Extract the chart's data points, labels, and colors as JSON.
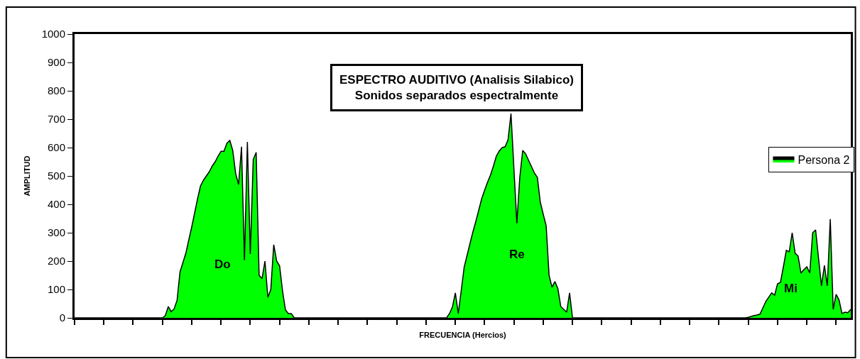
{
  "chart_data": {
    "type": "area",
    "title": "ESPECTRO AUDITIVO (Analisis Silabico)",
    "subtitle": "Sonidos separados espectralmente",
    "xlabel": "FRECUENCIA (Hercios)",
    "ylabel": "AMPLITUD",
    "categories": [
      null,
      null,
      null,
      null,
      null,
      null,
      null,
      null,
      null,
      null,
      null,
      null,
      null,
      null,
      null,
      null,
      null,
      null,
      null,
      null,
      null,
      null,
      null,
      null,
      null,
      null,
      null,
      null,
      null,
      null,
      null,
      null,
      null,
      null,
      null,
      null,
      null,
      null,
      null,
      null,
      null,
      null,
      null,
      null,
      null,
      null,
      null,
      null,
      null,
      null,
      null,
      null,
      null,
      null,
      null,
      null,
      null,
      null,
      null,
      null,
      null,
      null,
      null,
      null,
      null,
      null,
      null,
      null,
      null,
      null,
      null,
      null,
      null,
      null,
      null,
      null,
      null,
      null,
      null,
      null,
      null,
      null,
      null,
      null,
      null,
      null,
      null,
      null,
      null,
      null,
      null,
      null,
      null,
      null,
      null,
      null,
      null,
      null,
      null,
      null,
      null,
      null,
      null,
      null,
      null,
      null,
      null,
      null,
      null,
      null,
      null,
      null,
      null,
      null,
      null,
      null,
      null,
      null,
      null,
      null,
      null,
      null,
      null,
      null,
      null,
      null,
      null,
      null,
      null,
      null,
      null,
      null,
      null,
      null,
      null,
      null,
      null,
      null,
      null,
      null,
      null,
      null,
      null,
      null,
      null,
      null,
      null,
      null,
      null,
      null,
      null,
      null,
      null,
      null,
      null,
      null,
      null,
      null,
      null,
      null,
      null,
      null,
      null,
      null,
      null,
      null,
      null,
      null,
      null,
      null,
      null,
      null,
      null,
      null,
      null,
      null,
      null,
      null,
      null,
      null,
      null,
      null,
      null,
      null,
      null,
      null,
      null,
      null,
      null,
      null,
      null,
      null,
      null,
      null,
      null,
      null,
      null,
      null,
      null,
      null,
      null,
      null,
      null,
      null,
      null,
      null,
      null,
      null,
      null,
      null,
      null,
      null,
      null,
      null,
      null,
      null,
      null,
      null,
      null,
      null,
      null,
      null,
      null,
      null,
      null,
      null,
      null,
      null,
      null,
      null,
      null,
      null,
      null,
      null,
      null,
      null,
      null,
      null,
      null,
      null,
      null,
      null,
      null,
      null,
      null,
      null,
      null,
      null,
      null,
      null,
      null,
      null,
      null,
      null,
      null,
      null,
      null,
      null,
      null,
      null,
      null,
      null,
      null,
      null,
      null,
      null
    ],
    "series": [
      {
        "name": "Persona 2",
        "color": "#00ff00",
        "values": [
          0,
          0,
          0,
          0,
          0,
          0,
          0,
          0,
          0,
          0,
          0,
          0,
          0,
          0,
          0,
          0,
          0,
          0,
          0,
          0,
          0,
          0,
          0,
          0,
          0,
          0,
          0,
          0,
          0,
          0,
          0,
          8,
          40,
          22,
          32,
          62,
          162,
          195,
          228,
          275,
          320,
          370,
          420,
          465,
          485,
          500,
          515,
          535,
          550,
          570,
          587,
          587,
          615,
          625,
          590,
          508,
          470,
          603,
          203,
          620,
          225,
          558,
          583,
          150,
          138,
          200,
          72,
          100,
          258,
          200,
          183,
          95,
          28,
          15,
          15,
          0,
          0,
          0,
          0,
          0,
          0,
          0,
          0,
          0,
          0,
          0,
          0,
          0,
          0,
          0,
          0,
          0,
          0,
          0,
          0,
          0,
          0,
          0,
          0,
          0,
          0,
          0,
          0,
          0,
          0,
          0,
          0,
          0,
          0,
          0,
          0,
          0,
          0,
          0,
          0,
          0,
          0,
          0,
          0,
          0,
          0,
          0,
          0,
          0,
          0,
          0,
          0,
          0,
          15,
          38,
          88,
          15,
          95,
          178,
          220,
          262,
          303,
          340,
          380,
          420,
          450,
          478,
          503,
          535,
          570,
          588,
          600,
          603,
          628,
          720,
          525,
          333,
          495,
          590,
          578,
          555,
          533,
          510,
          495,
          408,
          365,
          325,
          150,
          108,
          128,
          103,
          40,
          30,
          20,
          88,
          0,
          0,
          0,
          0,
          0,
          0,
          0,
          0,
          0,
          0,
          0,
          0,
          0,
          0,
          0,
          0,
          0,
          0,
          0,
          0,
          0,
          0,
          0,
          0,
          0,
          0,
          0,
          0,
          0,
          0,
          0,
          0,
          0,
          0,
          0,
          0,
          0,
          0,
          0,
          0,
          0,
          0,
          0,
          0,
          0,
          0,
          0,
          0,
          0,
          0,
          0,
          0,
          0,
          0,
          0,
          0,
          0,
          0,
          0,
          0,
          2,
          5,
          8,
          10,
          13,
          35,
          58,
          73,
          88,
          80,
          120,
          125,
          180,
          238,
          233,
          300,
          228,
          218,
          158,
          170,
          180,
          158,
          300,
          310,
          210,
          113,
          185,
          113,
          348,
          30,
          83,
          63,
          15,
          20,
          18,
          30
        ]
      }
    ],
    "annotations": [
      "Do",
      "Re",
      "Mi"
    ],
    "ylim": [
      0,
      1000
    ],
    "yticks": [
      0,
      100,
      200,
      300,
      400,
      500,
      600,
      700,
      800,
      900,
      1000
    ],
    "tick_labels": "y",
    "legend": "right"
  }
}
